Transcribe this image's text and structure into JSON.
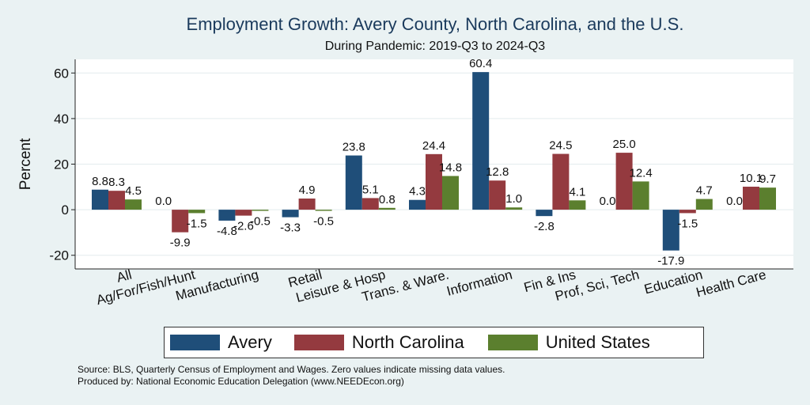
{
  "colors": {
    "avery": "#1f4e79",
    "north_carolina": "#943a3f",
    "united_states": "#5b7f2e",
    "title": "#1a3a5c"
  },
  "chart_data": {
    "type": "bar",
    "title": "Employment Growth: Avery County, North Carolina, and the U.S.",
    "subtitle": "During Pandemic: 2019-Q3 to 2024-Q3",
    "ylabel": "Percent",
    "ylim": [
      -26,
      66
    ],
    "yticks": [
      -20,
      0,
      20,
      40,
      60
    ],
    "ytick_labels": [
      "-20",
      "0",
      "20",
      "40",
      "60"
    ],
    "categories": [
      "All",
      "Ag/For/Fish/Hunt",
      "Manufacturing",
      "Retail",
      "Leisure & Hosp",
      "Trans. & Ware.",
      "Information",
      "Fin & Ins",
      "Prof, Sci, Tech",
      "Education",
      "Health Care"
    ],
    "series": [
      {
        "name": "Avery",
        "values": [
          8.8,
          0.0,
          -4.8,
          -3.3,
          23.8,
          4.3,
          60.4,
          -2.8,
          0.0,
          -17.9,
          0.0
        ]
      },
      {
        "name": "North Carolina",
        "values": [
          8.3,
          -9.9,
          -2.6,
          4.9,
          5.1,
          24.4,
          12.8,
          24.5,
          25.0,
          -1.5,
          10.1
        ]
      },
      {
        "name": "United States",
        "values": [
          4.5,
          -1.5,
          -0.5,
          -0.5,
          0.8,
          14.8,
          1.0,
          4.1,
          12.4,
          4.7,
          9.7
        ]
      }
    ],
    "value_labels": [
      [
        "8.8",
        "0.0",
        "-4.8",
        "-3.3",
        "23.8",
        "4.3",
        "60.4",
        "-2.8",
        "0.0",
        "-17.9",
        "0.0"
      ],
      [
        "8.3",
        "-9.9",
        "-2.6",
        "4.9",
        "5.1",
        "24.4",
        "12.8",
        "24.5",
        "25.0",
        "-1.5",
        "10.1"
      ],
      [
        "4.5",
        "-1.5",
        "-0.5",
        "-0.5",
        "0.8",
        "14.8",
        "1.0",
        "4.1",
        "12.4",
        "4.7",
        "9.7"
      ]
    ],
    "legend": [
      "Avery",
      "North Carolina",
      "United States"
    ],
    "legend_position": "bottom"
  },
  "footer": {
    "source": "Source: BLS, Quarterly Census of Employment and Wages. Zero values indicate missing data values.",
    "produced_by": "Produced by: National Economic Education Delegation (www.NEEDEcon.org)"
  }
}
